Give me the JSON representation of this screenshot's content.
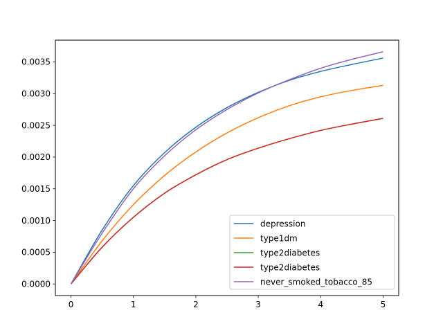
{
  "chart_data": {
    "type": "line",
    "title": "",
    "xlabel": "",
    "ylabel": "",
    "xlim": [
      -0.25,
      5.25
    ],
    "ylim": [
      -0.000183,
      0.003843
    ],
    "x_ticks": [
      0,
      1,
      2,
      3,
      4,
      5
    ],
    "x_tick_labels": [
      "0",
      "1",
      "2",
      "3",
      "4",
      "5"
    ],
    "y_ticks": [
      0.0,
      0.0005,
      0.001,
      0.0015,
      0.002,
      0.0025,
      0.003,
      0.0035
    ],
    "y_tick_labels": [
      "0.0000",
      "0.0005",
      "0.0010",
      "0.0015",
      "0.0020",
      "0.0025",
      "0.0030",
      "0.0035"
    ],
    "grid": false,
    "legend_position": "lower-right",
    "x": [
      0,
      0.5,
      1,
      1.5,
      2,
      2.5,
      3,
      3.5,
      4,
      4.5,
      5
    ],
    "series": [
      {
        "name": "depression",
        "color": "#1f77b4",
        "values": [
          0.0,
          0.00085,
          0.00155,
          0.00207,
          0.00247,
          0.00278,
          0.00302,
          0.00321,
          0.00335,
          0.00346,
          0.00356
        ]
      },
      {
        "name": "type1dm",
        "color": "#ff7f0e",
        "values": [
          0.0,
          0.00068,
          0.00125,
          0.00171,
          0.00208,
          0.00238,
          0.00262,
          0.00281,
          0.00295,
          0.00305,
          0.00313
        ]
      },
      {
        "name": "type2diabetes",
        "color": "#2ca02c",
        "values": [
          0.0,
          0.00058,
          0.00105,
          0.00143,
          0.00172,
          0.00196,
          0.00214,
          0.00229,
          0.00242,
          0.00252,
          0.00261
        ]
      },
      {
        "name": "type2diabetes",
        "color": "#d62728",
        "values": [
          0.0,
          0.00058,
          0.00105,
          0.00143,
          0.00172,
          0.00196,
          0.00214,
          0.00229,
          0.00242,
          0.00252,
          0.00261
        ]
      },
      {
        "name": "never_smoked_tobacco_85",
        "color": "#9467bd",
        "values": [
          0.0,
          0.0008,
          0.0015,
          0.00202,
          0.00243,
          0.00275,
          0.00301,
          0.00322,
          0.0034,
          0.00354,
          0.00366
        ]
      }
    ]
  }
}
